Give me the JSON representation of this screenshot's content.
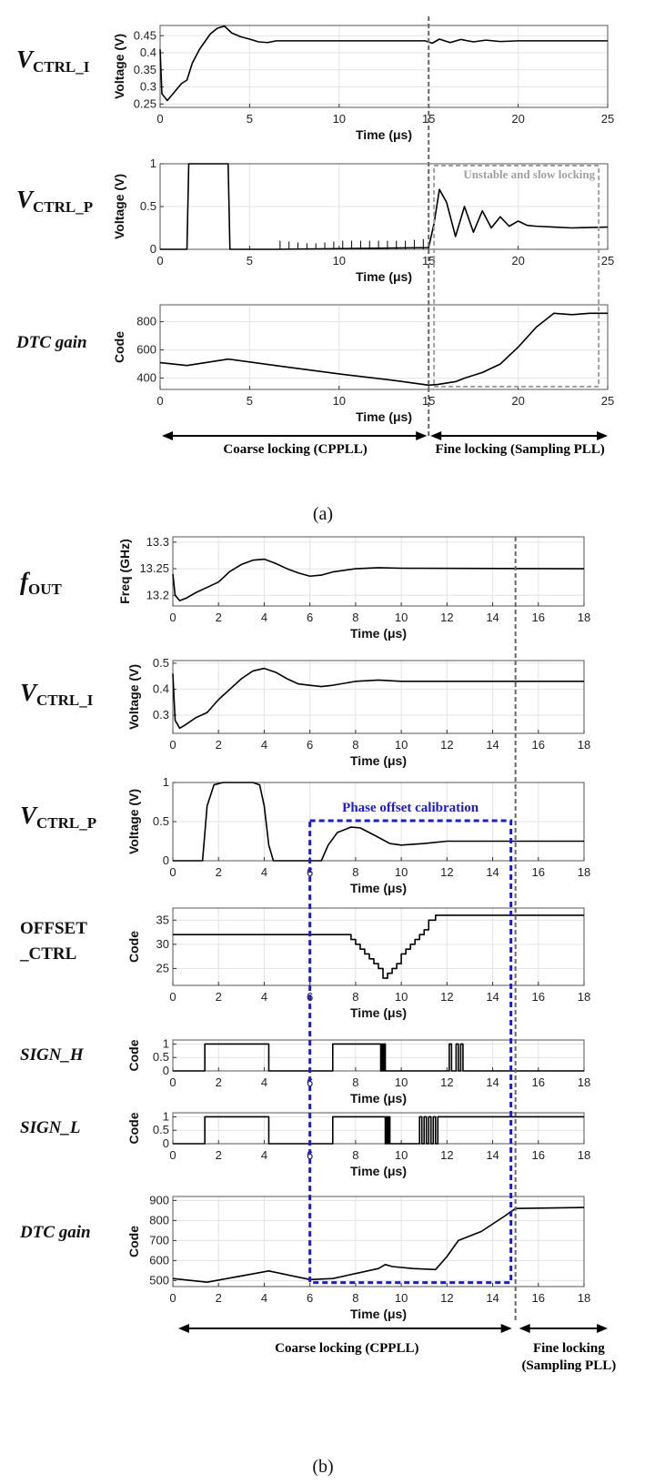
{
  "figure": {
    "caption_a": "(a)",
    "caption_b": "(b)"
  },
  "chart_data": [
    {
      "id": "a_vctrl_i",
      "type": "line",
      "row_label": {
        "main": "V",
        "sub": "CTRL_I"
      },
      "xlabel": "Time (μs)",
      "ylabel": "Voltage (V)",
      "xlim": [
        0,
        25
      ],
      "ylim": [
        0.24,
        0.48
      ],
      "xticks": [
        0,
        5,
        10,
        15,
        20,
        25
      ],
      "yticks": [
        0.25,
        0.3,
        0.35,
        0.4,
        0.45
      ],
      "ytick_labels": [
        "0.25",
        "0.3",
        "0.35",
        "0.4",
        "0.45"
      ],
      "grid": true,
      "series": [
        {
          "x": [
            0,
            0.1,
            0.4,
            0.8,
            1.2,
            1.5,
            1.8,
            2.2,
            2.8,
            3.2,
            3.6,
            4.0,
            4.5,
            5.0,
            5.5,
            6.0,
            6.5,
            7,
            10,
            14.8,
            15.2,
            15.6,
            16.2,
            16.8,
            17.5,
            18.2,
            19,
            20,
            25
          ],
          "y": [
            0.41,
            0.28,
            0.26,
            0.285,
            0.31,
            0.32,
            0.37,
            0.41,
            0.455,
            0.472,
            0.478,
            0.458,
            0.447,
            0.44,
            0.432,
            0.43,
            0.435,
            0.435,
            0.435,
            0.435,
            0.428,
            0.44,
            0.43,
            0.439,
            0.432,
            0.437,
            0.433,
            0.435,
            0.435
          ]
        }
      ]
    },
    {
      "id": "a_vctrl_p",
      "type": "line",
      "row_label": {
        "main": "V",
        "sub": "CTRL_P"
      },
      "xlabel": "Time (μs)",
      "ylabel": "Voltage (V)",
      "xlim": [
        0,
        25
      ],
      "ylim": [
        0,
        1
      ],
      "xticks": [
        0,
        5,
        10,
        15,
        20,
        25
      ],
      "yticks": [
        0,
        0.5,
        1
      ],
      "ytick_labels": [
        "0",
        "0.5",
        "1"
      ],
      "grid": true,
      "series": [
        {
          "x": [
            0,
            1.5,
            1.6,
            3.8,
            3.9,
            6.5,
            15,
            15.3,
            15.6,
            16,
            16.5,
            17,
            17.5,
            18,
            18.5,
            19,
            19.5,
            20,
            20.5,
            21,
            22,
            23,
            25
          ],
          "y": [
            0,
            0,
            1,
            1,
            0,
            0,
            0.02,
            0.3,
            0.7,
            0.55,
            0.15,
            0.5,
            0.2,
            0.45,
            0.25,
            0.38,
            0.27,
            0.33,
            0.28,
            0.27,
            0.26,
            0.25,
            0.26
          ]
        }
      ],
      "spikes": {
        "x": [
          6.7,
          7.2,
          7.7,
          8.2,
          8.7,
          9.2,
          9.7,
          10.2,
          10.7,
          11.2,
          11.7,
          12.2,
          12.7,
          13.2,
          13.7,
          14.2,
          14.7
        ],
        "y": [
          0.1,
          0.09,
          0.08,
          0.07,
          0.07,
          0.08,
          0.09,
          0.1,
          0.1,
          0.1,
          0.1,
          0.1,
          0.1,
          0.1,
          0.1,
          0.11,
          0.12
        ]
      },
      "annotation": {
        "text": "Unstable and slow locking",
        "x0": 15.3,
        "x1": 24.5,
        "ytop": 1
      }
    },
    {
      "id": "a_dtc",
      "type": "line",
      "row_label": {
        "main": "DTC gain"
      },
      "xlabel": "Time (μs)",
      "ylabel": "Code",
      "xlim": [
        0,
        25
      ],
      "ylim": [
        320,
        920
      ],
      "xticks": [
        0,
        5,
        10,
        15,
        20,
        25
      ],
      "yticks": [
        400,
        600,
        800
      ],
      "ytick_labels": [
        "400",
        "600",
        "800"
      ],
      "grid": true,
      "series": [
        {
          "x": [
            0,
            1.5,
            3.8,
            7,
            10,
            13,
            15,
            15.5,
            16.5,
            17,
            18,
            19,
            20,
            21,
            22,
            23,
            24,
            25
          ],
          "y": [
            510,
            490,
            535,
            480,
            430,
            385,
            350,
            355,
            375,
            400,
            440,
            500,
            620,
            760,
            860,
            850,
            860,
            860
          ]
        }
      ],
      "annotation_box_bottom": 340
    },
    {
      "id": "b_fout",
      "type": "line",
      "row_label": {
        "main": "f",
        "sub": "OUT"
      },
      "xlabel": "Time (μs)",
      "ylabel": "Freq (GHz)",
      "xlim": [
        0,
        18
      ],
      "ylim": [
        13.18,
        13.31
      ],
      "xticks": [
        0,
        2,
        4,
        6,
        8,
        10,
        12,
        14,
        16,
        18
      ],
      "yticks": [
        13.2,
        13.25,
        13.3
      ],
      "ytick_labels": [
        "13.2",
        "13.25",
        "13.3"
      ],
      "grid": true,
      "series": [
        {
          "x": [
            0,
            0.1,
            0.3,
            0.6,
            1,
            1.5,
            2,
            2.5,
            3,
            3.5,
            4,
            4.5,
            5,
            5.5,
            6,
            6.5,
            7,
            8,
            9,
            10,
            18
          ],
          "y": [
            13.24,
            13.2,
            13.19,
            13.195,
            13.205,
            13.215,
            13.225,
            13.245,
            13.258,
            13.266,
            13.268,
            13.26,
            13.25,
            13.242,
            13.236,
            13.238,
            13.244,
            13.25,
            13.252,
            13.251,
            13.25
          ]
        }
      ]
    },
    {
      "id": "b_vctrl_i",
      "type": "line",
      "row_label": {
        "main": "V",
        "sub": "CTRL_I"
      },
      "xlabel": "Time (μs)",
      "ylabel": "Voltage (V)",
      "xlim": [
        0,
        18
      ],
      "ylim": [
        0.23,
        0.51
      ],
      "xticks": [
        0,
        2,
        4,
        6,
        8,
        10,
        12,
        14,
        16,
        18
      ],
      "yticks": [
        0.3,
        0.4,
        0.5
      ],
      "ytick_labels": [
        "0.3",
        "0.4",
        "0.5"
      ],
      "grid": true,
      "series": [
        {
          "x": [
            0,
            0.1,
            0.3,
            0.5,
            1,
            1.5,
            2,
            2.5,
            3,
            3.5,
            4,
            4.5,
            5,
            5.5,
            6,
            6.5,
            7,
            8,
            9,
            10,
            12,
            18
          ],
          "y": [
            0.46,
            0.28,
            0.25,
            0.26,
            0.29,
            0.31,
            0.36,
            0.4,
            0.44,
            0.47,
            0.48,
            0.465,
            0.44,
            0.42,
            0.415,
            0.41,
            0.415,
            0.43,
            0.435,
            0.43,
            0.43,
            0.43
          ]
        }
      ]
    },
    {
      "id": "b_vctrl_p",
      "type": "line",
      "row_label": {
        "main": "V",
        "sub": "CTRL_P"
      },
      "xlabel": "Time (μs)",
      "ylabel": "Voltage (V)",
      "xlim": [
        0,
        18
      ],
      "ylim": [
        0,
        1
      ],
      "xticks": [
        0,
        2,
        4,
        6,
        8,
        10,
        12,
        14,
        16,
        18
      ],
      "yticks": [
        0,
        0.5,
        1
      ],
      "ytick_labels": [
        "0",
        "0.5",
        "1"
      ],
      "grid": true,
      "series": [
        {
          "x": [
            0,
            1.3,
            1.5,
            1.8,
            2.2,
            3.5,
            3.8,
            4.0,
            4.2,
            4.4,
            6.5,
            6.8,
            7.2,
            7.8,
            8.2,
            8.8,
            9.5,
            10,
            11,
            12,
            13,
            18
          ],
          "y": [
            0,
            0,
            0.7,
            0.97,
            1,
            1,
            0.97,
            0.7,
            0.2,
            0,
            0,
            0.2,
            0.36,
            0.43,
            0.42,
            0.33,
            0.22,
            0.2,
            0.22,
            0.25,
            0.25,
            0.25
          ]
        }
      ],
      "annotation": {
        "text": "Phase offset calibration",
        "x0": 6,
        "x1": 14.8
      }
    },
    {
      "id": "b_offset",
      "type": "line",
      "row_label": {
        "lines": [
          "OFFSET",
          "_CTRL"
        ]
      },
      "xlabel": "Time (μs)",
      "ylabel": "Code",
      "xlim": [
        0,
        18
      ],
      "ylim": [
        21.5,
        37.5
      ],
      "xticks": [
        0,
        2,
        4,
        6,
        8,
        10,
        12,
        14,
        16,
        18
      ],
      "yticks": [
        25,
        30,
        35
      ],
      "ytick_labels": [
        "25",
        "30",
        "35"
      ],
      "grid": true,
      "step": true,
      "series": [
        {
          "x": [
            0,
            7.8,
            8.0,
            8.2,
            8.4,
            8.6,
            8.8,
            9.0,
            9.2,
            9.4,
            9.6,
            9.8,
            10.0,
            10.2,
            10.4,
            10.6,
            10.8,
            11.0,
            11.2,
            11.5,
            18
          ],
          "y": [
            32,
            31,
            30,
            29,
            28,
            27,
            26,
            25,
            23,
            24,
            25,
            26,
            28,
            29,
            30,
            31,
            32,
            33,
            35,
            36,
            36
          ]
        }
      ]
    },
    {
      "id": "b_sign_h",
      "type": "line",
      "row_label": {
        "main": "SIGN_H"
      },
      "xlabel": "Time (μs)",
      "ylabel": "Code",
      "xlim": [
        0,
        18
      ],
      "ylim": [
        0,
        1.15
      ],
      "xticks": [
        0,
        2,
        4,
        6,
        8,
        10,
        12,
        14,
        16,
        18
      ],
      "yticks": [
        0,
        0.5,
        1
      ],
      "ytick_labels": [
        "0",
        "0.5",
        "1"
      ],
      "grid": true,
      "step": true,
      "series": [
        {
          "x": [
            0,
            1.4,
            4.2,
            7.0,
            9.1,
            9.15,
            9.2,
            9.25,
            9.3,
            12.1,
            12.2,
            12.4,
            12.5,
            12.6,
            12.7,
            13.0,
            18
          ],
          "y": [
            0,
            1,
            0,
            1,
            0,
            1,
            0,
            1,
            0,
            1,
            0,
            1,
            0,
            1,
            0,
            0,
            0
          ]
        }
      ]
    },
    {
      "id": "b_sign_l",
      "type": "line",
      "row_label": {
        "main": "SIGN_L"
      },
      "xlabel": "Time (μs)",
      "ylabel": "Code",
      "xlim": [
        0,
        18
      ],
      "ylim": [
        0,
        1.15
      ],
      "xticks": [
        0,
        2,
        4,
        6,
        8,
        10,
        12,
        14,
        16,
        18
      ],
      "yticks": [
        0,
        0.5,
        1
      ],
      "ytick_labels": [
        "0",
        "0.5",
        "1"
      ],
      "grid": true,
      "step": true,
      "series": [
        {
          "x": [
            0,
            1.4,
            4.2,
            7.0,
            9.3,
            9.35,
            9.4,
            9.45,
            9.5,
            10.8,
            10.9,
            11.0,
            11.1,
            11.2,
            11.3,
            11.4,
            11.5,
            11.6,
            11.7,
            18
          ],
          "y": [
            0,
            1,
            0,
            1,
            0,
            1,
            0,
            1,
            0,
            1,
            0,
            1,
            0,
            1,
            0,
            1,
            0,
            1,
            1,
            1
          ]
        }
      ]
    },
    {
      "id": "b_dtc",
      "type": "line",
      "row_label": {
        "main": "DTC gain"
      },
      "xlabel": "Time (μs)",
      "ylabel": "Code",
      "xlim": [
        0,
        18
      ],
      "ylim": [
        470,
        920
      ],
      "xticks": [
        0,
        2,
        4,
        6,
        8,
        10,
        12,
        14,
        16,
        18
      ],
      "yticks": [
        500,
        600,
        700,
        800,
        900
      ],
      "ytick_labels": [
        "500",
        "600",
        "700",
        "800",
        "900"
      ],
      "grid": true,
      "series": [
        {
          "x": [
            0,
            1.5,
            4.2,
            6.0,
            7.0,
            8.0,
            9.0,
            9.3,
            9.6,
            10.5,
            11.5,
            12.0,
            12.5,
            13.5,
            14.5,
            15.0,
            18
          ],
          "y": [
            510,
            492,
            548,
            505,
            510,
            535,
            560,
            580,
            570,
            560,
            555,
            620,
            700,
            745,
            820,
            860,
            865
          ]
        }
      ]
    }
  ],
  "phases": {
    "a": {
      "coarse": "Coarse locking (CPPLL)",
      "fine": "Fine locking (Sampling PLL)",
      "x_boundary": 15
    },
    "b": {
      "coarse": "Coarse locking (CPPLL)",
      "fine_line1": "Fine locking",
      "fine_line2": "(Sampling PLL)",
      "x_boundary": 15
    }
  },
  "colors": {
    "calibration_box": "#1a1adf",
    "unstable_box": "#a0a0a0",
    "line": "#000000",
    "grid": "#e3e3e3"
  }
}
